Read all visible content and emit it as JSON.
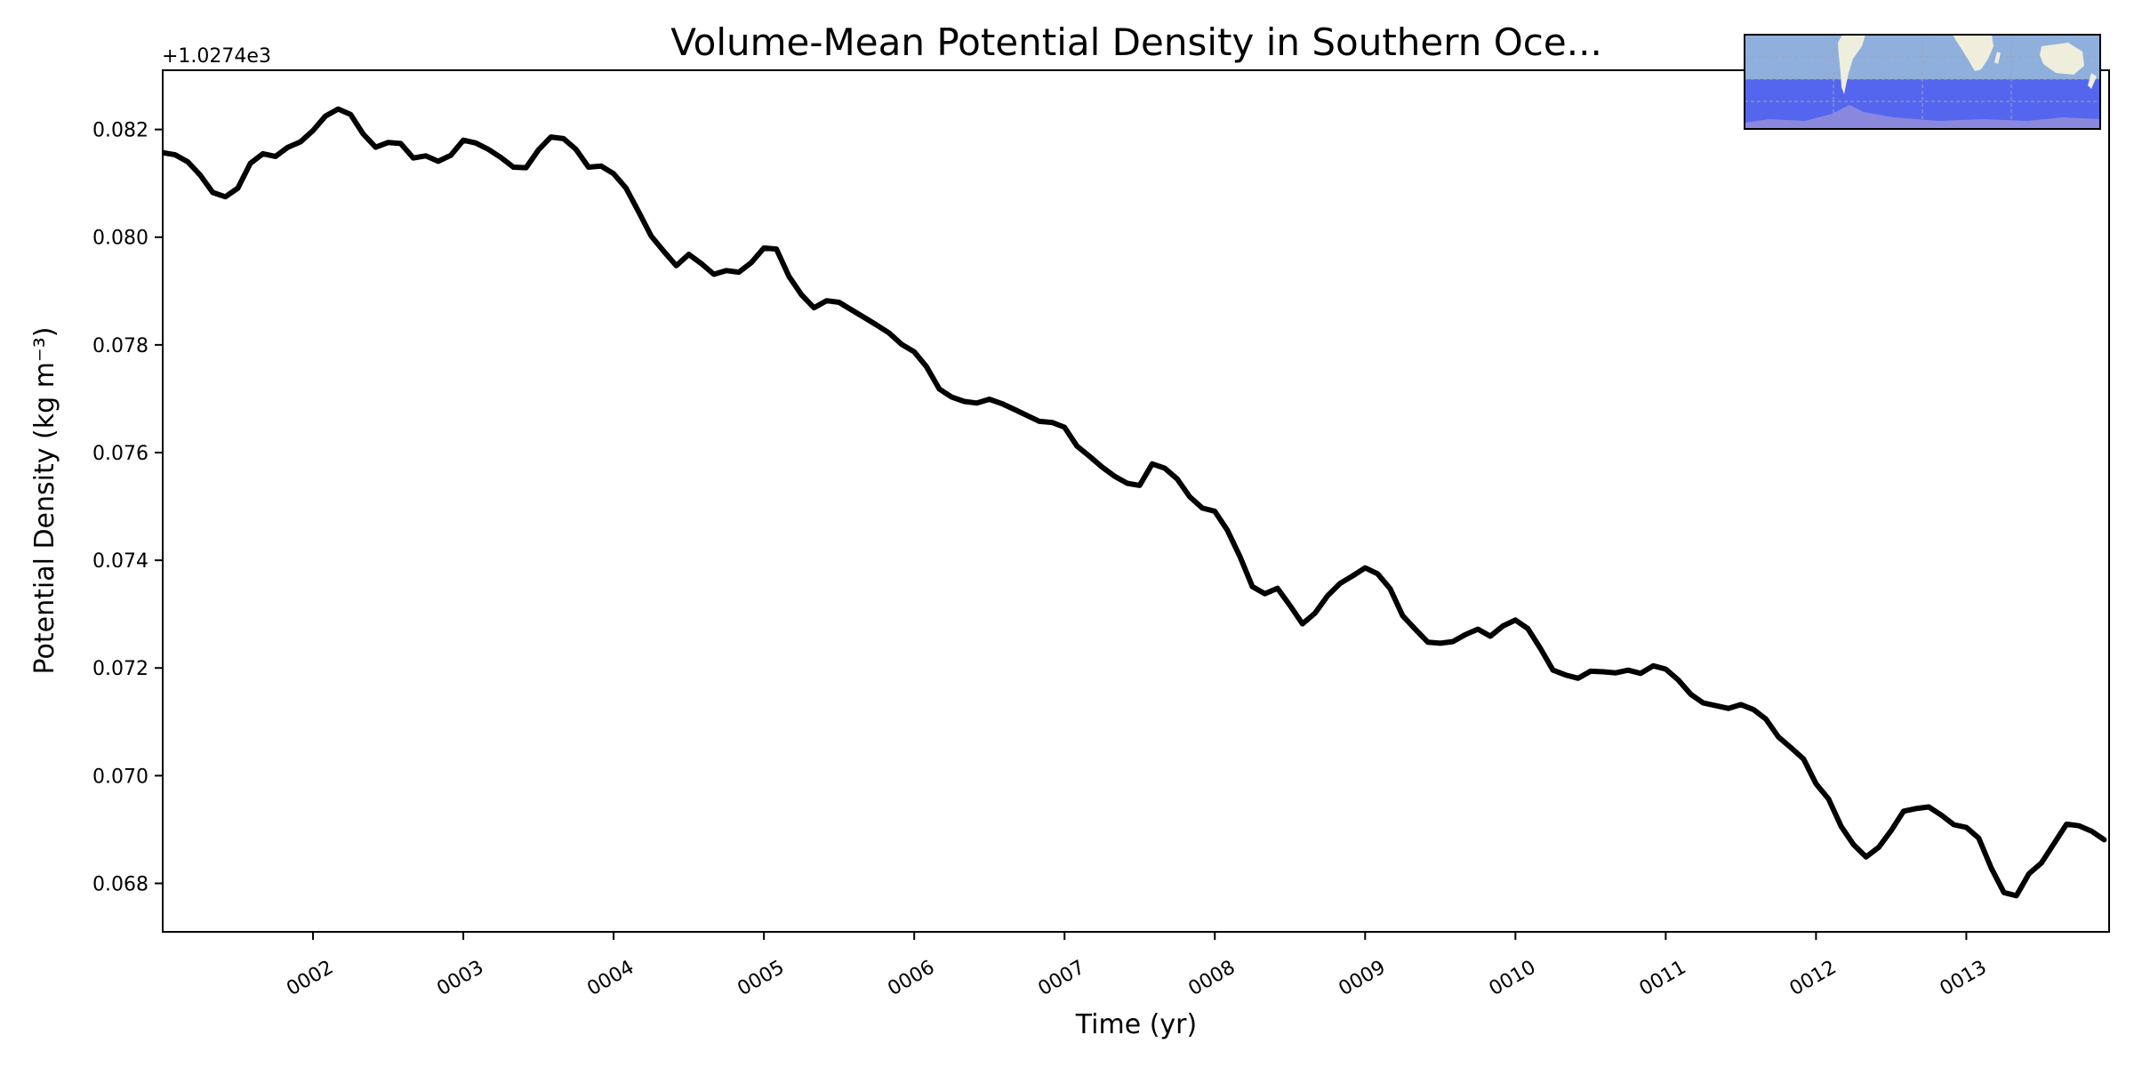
{
  "chart_data": {
    "type": "line",
    "title": "Volume-Mean Potential Density in Southern Oce...",
    "xlabel": "Time (yr)",
    "ylabel": "Potential Density (kg m⁻³)",
    "offset_label": "+1.0274e3",
    "xlim": [
      1.0,
      13.95
    ],
    "ylim": [
      0.0671,
      0.0831
    ],
    "x_ticks": [
      2,
      3,
      4,
      5,
      6,
      7,
      8,
      9,
      10,
      11,
      12,
      13
    ],
    "x_tick_labels": [
      "0002",
      "0003",
      "0004",
      "0005",
      "0006",
      "0007",
      "0008",
      "0009",
      "0010",
      "0011",
      "0012",
      "0013"
    ],
    "y_ticks": [
      0.068,
      0.07,
      0.072,
      0.074,
      0.076,
      0.078,
      0.08,
      0.082
    ],
    "y_tick_labels": [
      "0.068",
      "0.070",
      "0.072",
      "0.074",
      "0.076",
      "0.078",
      "0.080",
      "0.082"
    ],
    "grid": false,
    "line_color": "#000000",
    "inset": {
      "type": "map",
      "ocean_color": "#8fb0dc",
      "region_color": "#5566ee",
      "land_color": "#efeedd",
      "region_land_color": "#8a88dd"
    },
    "series": [
      {
        "x": [
          1.0,
          1.083,
          1.167,
          1.25,
          1.333,
          1.417,
          1.5,
          1.583,
          1.667,
          1.75,
          1.833,
          1.917,
          2.0,
          2.083,
          2.167,
          2.25,
          2.333,
          2.417,
          2.5,
          2.583,
          2.667,
          2.75,
          2.833,
          2.917,
          3.0,
          3.083,
          3.167,
          3.25,
          3.333,
          3.417,
          3.5,
          3.583,
          3.667,
          3.75,
          3.833,
          3.917,
          4.0,
          4.083,
          4.167,
          4.25,
          4.333,
          4.417,
          4.5,
          4.583,
          4.667,
          4.75,
          4.833,
          4.917,
          5.0,
          5.083,
          5.167,
          5.25,
          5.333,
          5.417,
          5.5,
          5.583,
          5.667,
          5.75,
          5.833,
          5.917,
          6.0,
          6.083,
          6.167,
          6.25,
          6.333,
          6.417,
          6.5,
          6.583,
          6.667,
          6.75,
          6.833,
          6.917,
          7.0,
          7.083,
          7.167,
          7.25,
          7.333,
          7.417,
          7.5,
          7.583,
          7.667,
          7.75,
          7.833,
          7.917,
          8.0,
          8.083,
          8.167,
          8.25,
          8.333,
          8.417,
          8.5,
          8.583,
          8.667,
          8.75,
          8.833,
          8.917,
          9.0,
          9.083,
          9.167,
          9.25,
          9.333,
          9.417,
          9.5,
          9.583,
          9.667,
          9.75,
          9.833,
          9.917,
          10.0,
          10.083,
          10.167,
          10.25,
          10.333,
          10.417,
          10.5,
          10.583,
          10.667,
          10.75,
          10.833,
          10.917,
          11.0,
          11.083,
          11.167,
          11.25,
          11.333,
          11.417,
          11.5,
          11.583,
          11.667,
          11.75,
          11.833,
          11.917,
          12.0,
          12.083,
          12.167,
          12.25,
          12.333,
          12.417,
          12.5,
          12.583,
          12.667,
          12.75,
          12.833,
          12.917,
          13.0,
          13.083,
          13.167,
          13.25,
          13.333,
          13.417,
          13.5,
          13.583,
          13.667,
          13.75,
          13.833,
          13.917
        ],
        "values": [
          0.08157,
          0.08153,
          0.0814,
          0.08115,
          0.08083,
          0.08075,
          0.08091,
          0.08137,
          0.08155,
          0.0815,
          0.08167,
          0.08177,
          0.08198,
          0.08225,
          0.08238,
          0.08228,
          0.08192,
          0.08167,
          0.08176,
          0.08174,
          0.08147,
          0.08151,
          0.08141,
          0.08152,
          0.0818,
          0.08175,
          0.08163,
          0.08148,
          0.0813,
          0.08129,
          0.08162,
          0.08186,
          0.08183,
          0.08163,
          0.0813,
          0.08132,
          0.08118,
          0.08091,
          0.08047,
          0.08002,
          0.07974,
          0.07947,
          0.07968,
          0.07951,
          0.07931,
          0.07938,
          0.07935,
          0.07953,
          0.0798,
          0.07978,
          0.07927,
          0.07893,
          0.07869,
          0.07882,
          0.07879,
          0.07865,
          0.07851,
          0.07837,
          0.07822,
          0.07801,
          0.07787,
          0.07759,
          0.07718,
          0.07703,
          0.07695,
          0.07692,
          0.07699,
          0.07691,
          0.0768,
          0.07669,
          0.07658,
          0.07656,
          0.07647,
          0.07612,
          0.07593,
          0.07573,
          0.07556,
          0.07543,
          0.07539,
          0.07579,
          0.07571,
          0.07551,
          0.07518,
          0.07497,
          0.07491,
          0.07456,
          0.07407,
          0.07351,
          0.07338,
          0.07348,
          0.07316,
          0.07282,
          0.07302,
          0.07334,
          0.07357,
          0.07371,
          0.07386,
          0.07375,
          0.07347,
          0.07297,
          0.07272,
          0.07248,
          0.07246,
          0.07249,
          0.07262,
          0.07272,
          0.07259,
          0.07278,
          0.07289,
          0.07273,
          0.07236,
          0.07196,
          0.07187,
          0.07181,
          0.07194,
          0.07193,
          0.07191,
          0.07196,
          0.0719,
          0.07204,
          0.07198,
          0.07178,
          0.07151,
          0.07135,
          0.0713,
          0.07125,
          0.07132,
          0.07123,
          0.07105,
          0.07072,
          0.07052,
          0.07031,
          0.06985,
          0.06957,
          0.06906,
          0.06872,
          0.06849,
          0.06867,
          0.06898,
          0.06934,
          0.06939,
          0.06942,
          0.06927,
          0.06909,
          0.06904,
          0.06884,
          0.06828,
          0.06783,
          0.06777,
          0.06818,
          0.06838,
          0.06874,
          0.0691,
          0.06907,
          0.06897,
          0.06881
        ]
      }
    ]
  }
}
